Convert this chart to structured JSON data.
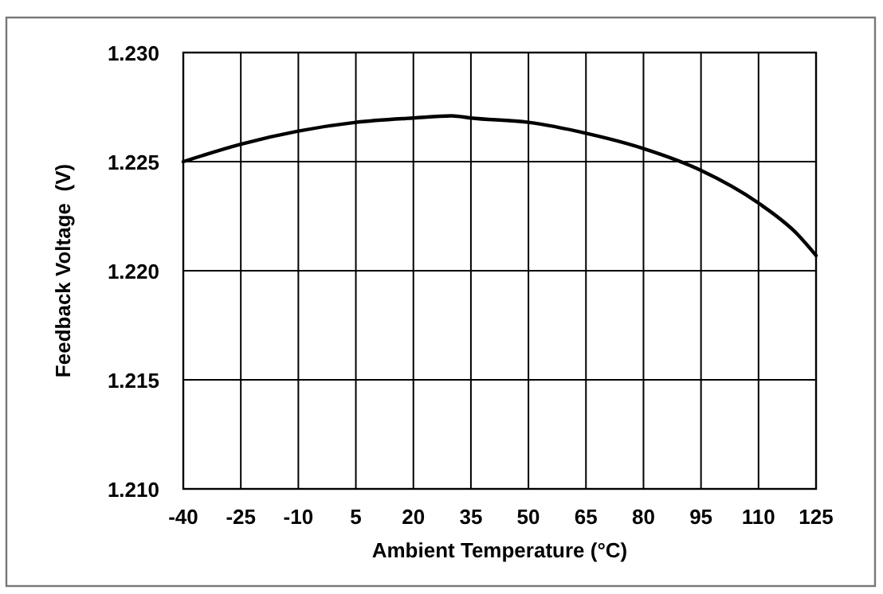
{
  "chart_data": {
    "type": "line",
    "xlabel": "Ambient Temperature (°C)",
    "ylabel": "Feedback Voltage  (V)",
    "x": [
      -40,
      -25,
      -10,
      5,
      20,
      30,
      35,
      50,
      65,
      80,
      95,
      110,
      120,
      125
    ],
    "series": [
      {
        "color": "#000000",
        "values": [
          1.225,
          1.2258,
          1.2264,
          1.2268,
          1.227,
          1.2271,
          1.227,
          1.2268,
          1.2263,
          1.2256,
          1.2246,
          1.2231,
          1.2217,
          1.2207
        ]
      }
    ],
    "xlim": [
      -40,
      125
    ],
    "xticks": [
      -40,
      -25,
      -10,
      5,
      20,
      35,
      50,
      65,
      80,
      95,
      110,
      125
    ],
    "ylim": [
      1.21,
      1.23
    ],
    "yticks": [
      {
        "value": 1.21,
        "label": "1.210"
      },
      {
        "value": 1.215,
        "label": "1.215"
      },
      {
        "value": 1.22,
        "label": "1.220"
      },
      {
        "value": 1.225,
        "label": "1.225"
      },
      {
        "value": 1.23,
        "label": "1.230"
      }
    ],
    "grid": true,
    "marker": "none",
    "line_style": "solid"
  }
}
